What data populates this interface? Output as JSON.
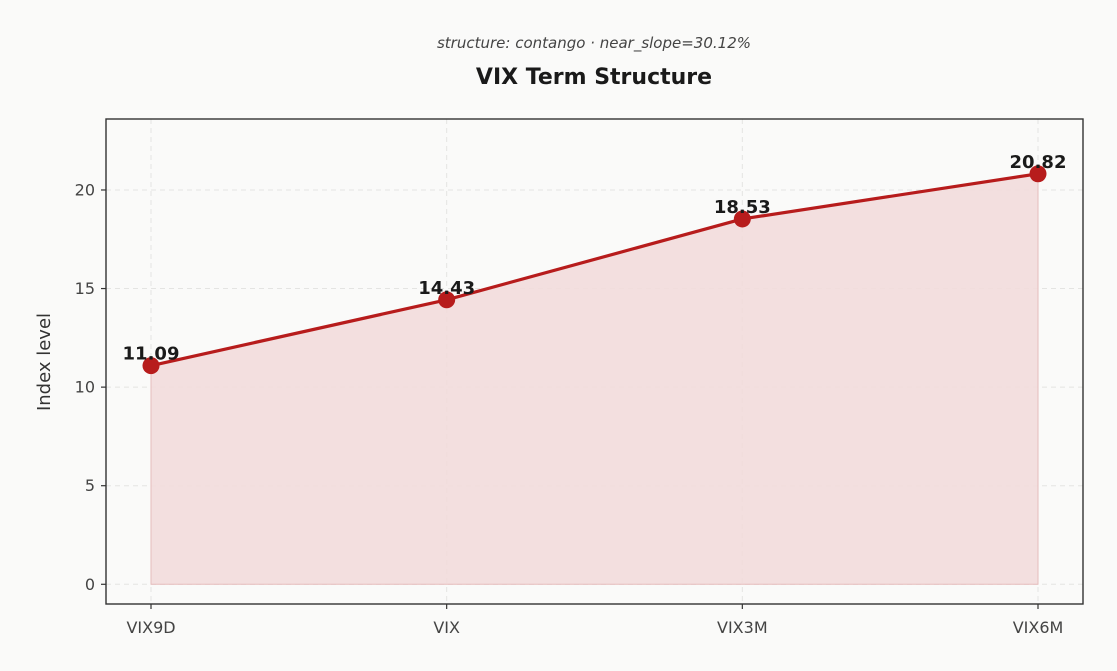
{
  "chart_data": {
    "type": "area",
    "subtitle": "structure: contango · near_slope=30.12%",
    "title": "VIX Term Structure",
    "xlabel": "",
    "ylabel": "Index level",
    "categories": [
      "VIX9D",
      "VIX",
      "VIX3M",
      "VIX6M"
    ],
    "series": [
      {
        "values": [
          11.09,
          14.43,
          18.53,
          20.82
        ]
      }
    ],
    "data_labels": [
      "11.09",
      "14.43",
      "18.53",
      "20.82"
    ],
    "ylim": [
      -1,
      23.6
    ],
    "yticks": [
      0,
      5,
      10,
      15,
      20
    ],
    "ytick_labels": [
      "0",
      "5",
      "10",
      "15",
      "20"
    ],
    "grid": true,
    "legend": "none",
    "colors": {
      "line": "#b71c1c",
      "fill": "#f2dcdc",
      "marker": "#b71c1c",
      "axes": "#333333",
      "background": "#fafaf9"
    }
  }
}
